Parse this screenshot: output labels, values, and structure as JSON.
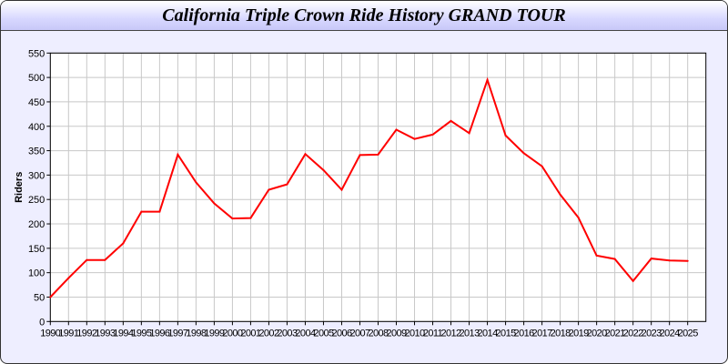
{
  "chart_data": {
    "type": "line",
    "title": "California Triple Crown Ride History GRAND TOUR",
    "xlabel": "",
    "ylabel": "Riders",
    "x": [
      1990,
      1991,
      1992,
      1993,
      1994,
      1995,
      1996,
      1997,
      1998,
      1999,
      2000,
      2001,
      2002,
      2003,
      2004,
      2005,
      2006,
      2007,
      2008,
      2009,
      2010,
      2011,
      2012,
      2013,
      2014,
      2015,
      2016,
      2017,
      2018,
      2019,
      2020,
      2021,
      2022,
      2023,
      2024,
      2025
    ],
    "series": [
      {
        "values": [
          50,
          89,
          126,
          126,
          160,
          225,
          225,
          342,
          285,
          242,
          211,
          212,
          270,
          281,
          343,
          310,
          270,
          341,
          342,
          393,
          374,
          383,
          411,
          386,
          495,
          381,
          345,
          318,
          260,
          213,
          135,
          128,
          83,
          129,
          125,
          124
        ],
        "color": "#ff0000"
      }
    ],
    "xlim": [
      1990,
      2026
    ],
    "ylim": [
      0,
      550
    ],
    "yticks": [
      0,
      50,
      100,
      150,
      200,
      250,
      300,
      350,
      400,
      450,
      500,
      550
    ],
    "grid": true,
    "legend": "none"
  }
}
